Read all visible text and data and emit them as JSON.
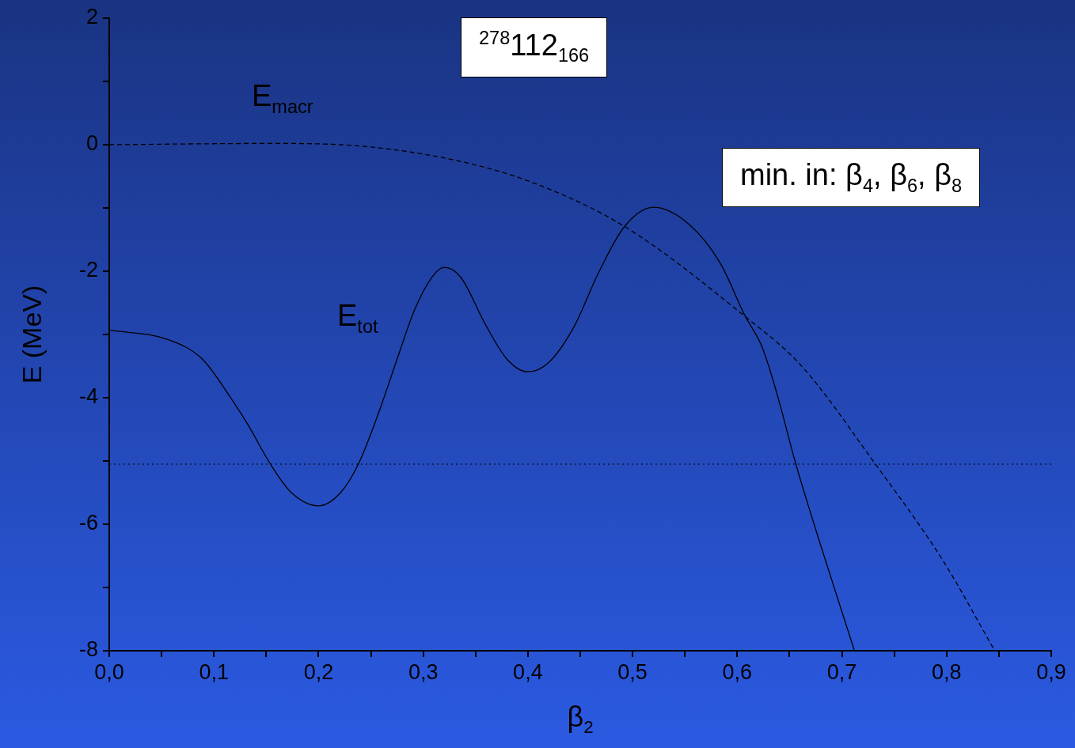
{
  "chart_data": {
    "type": "line",
    "xlabel": "β$_{2}$",
    "ylabel": "E  (MeV)",
    "xlim": [
      0,
      0.9
    ],
    "xticks": [
      {
        "value": 0,
        "label": "0,0"
      },
      {
        "value": 0.05,
        "label": null
      },
      {
        "value": 0.1,
        "label": "0,1"
      },
      {
        "value": 0.15,
        "label": null
      },
      {
        "value": 0.2,
        "label": "0,2"
      },
      {
        "value": 0.25,
        "label": null
      },
      {
        "value": 0.3,
        "label": "0,3"
      },
      {
        "value": 0.35,
        "label": null
      },
      {
        "value": 0.4,
        "label": "0,4"
      },
      {
        "value": 0.45,
        "label": null
      },
      {
        "value": 0.5,
        "label": "0,5"
      },
      {
        "value": 0.55,
        "label": null
      },
      {
        "value": 0.6,
        "label": "0,6"
      },
      {
        "value": 0.65,
        "label": null
      },
      {
        "value": 0.7,
        "label": "0,7"
      },
      {
        "value": 0.75,
        "label": null
      },
      {
        "value": 0.8,
        "label": "0,8"
      },
      {
        "value": 0.85,
        "label": null
      },
      {
        "value": 0.9,
        "label": "0,9"
      }
    ],
    "ylim": [
      -8,
      2
    ],
    "yticks": [
      -8,
      {
        "value": -7,
        "label": null
      },
      -6,
      {
        "value": -5,
        "label": null
      },
      -4,
      {
        "value": -3,
        "label": null
      },
      -2,
      {
        "value": -1,
        "label": null
      },
      0,
      {
        "value": 1,
        "label": null
      },
      2
    ],
    "marker": "none",
    "series": [
      {
        "name": "E$_{tot}$",
        "color": "#000000",
        "line_style": "solid",
        "x": [
          0,
          0.056,
          0.089,
          0.116,
          0.133,
          0.154,
          0.174,
          0.2,
          0.221,
          0.238,
          0.258,
          0.275,
          0.292,
          0.309,
          0.32,
          0.336,
          0.359,
          0.38,
          0.4,
          0.42,
          0.444,
          0.467,
          0.492,
          0.52,
          0.554,
          0.584,
          0.607,
          0.624,
          0.638,
          0.656,
          0.681,
          0.712
        ],
        "values": [
          -2.93,
          -3.08,
          -3.39,
          -4.0,
          -4.44,
          -5.05,
          -5.5,
          -5.71,
          -5.5,
          -5.05,
          -4.21,
          -3.39,
          -2.6,
          -2.08,
          -1.94,
          -2.1,
          -2.83,
          -3.39,
          -3.59,
          -3.44,
          -2.88,
          -2.04,
          -1.3,
          -0.99,
          -1.26,
          -1.88,
          -2.69,
          -3.21,
          -3.94,
          -5.05,
          -6.4,
          -8.0
        ]
      },
      {
        "name": "E$_{macr}$",
        "color": "#000000",
        "line_style": "dashed",
        "x": [
          0,
          0.154,
          0.221,
          0.326,
          0.403,
          0.492,
          0.607,
          0.661,
          0.732,
          0.796,
          0.846
        ],
        "values": [
          0,
          0.02,
          0,
          -0.23,
          -0.59,
          -1.29,
          -2.71,
          -3.49,
          -5.05,
          -6.56,
          -8.0
        ]
      }
    ],
    "ref_lines": [
      {
        "axis": "y",
        "value": -5.05,
        "line_style": "dotted",
        "color": "#000000"
      }
    ],
    "annotations": [
      "$^{278}$112$_{166}$",
      "min. in: β$_{4}$, β$_{6}$, β$_{8}$"
    ]
  }
}
